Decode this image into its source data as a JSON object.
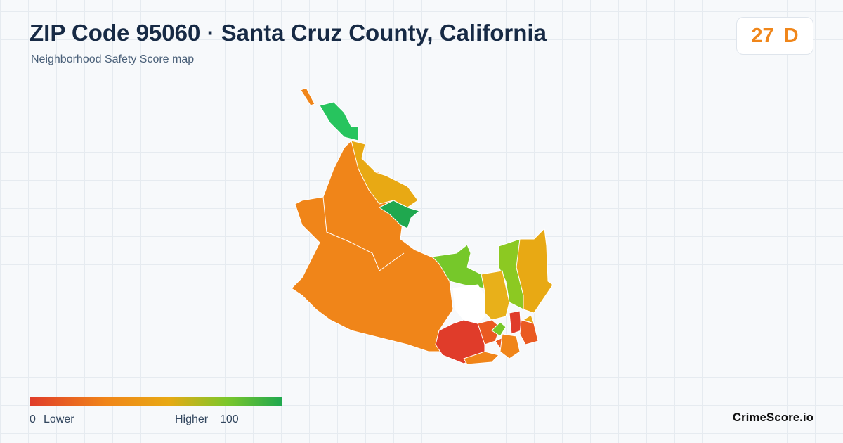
{
  "header": {
    "title": "ZIP Code 95060 · Santa Cruz County, California",
    "subtitle": "Neighborhood Safety Score map"
  },
  "score": {
    "value": 27,
    "grade": "D"
  },
  "legend": {
    "min": 0,
    "low_label": "Lower",
    "high_label": "Higher",
    "max": 100
  },
  "footer": {
    "brand": "CrimeScore.io"
  }
}
